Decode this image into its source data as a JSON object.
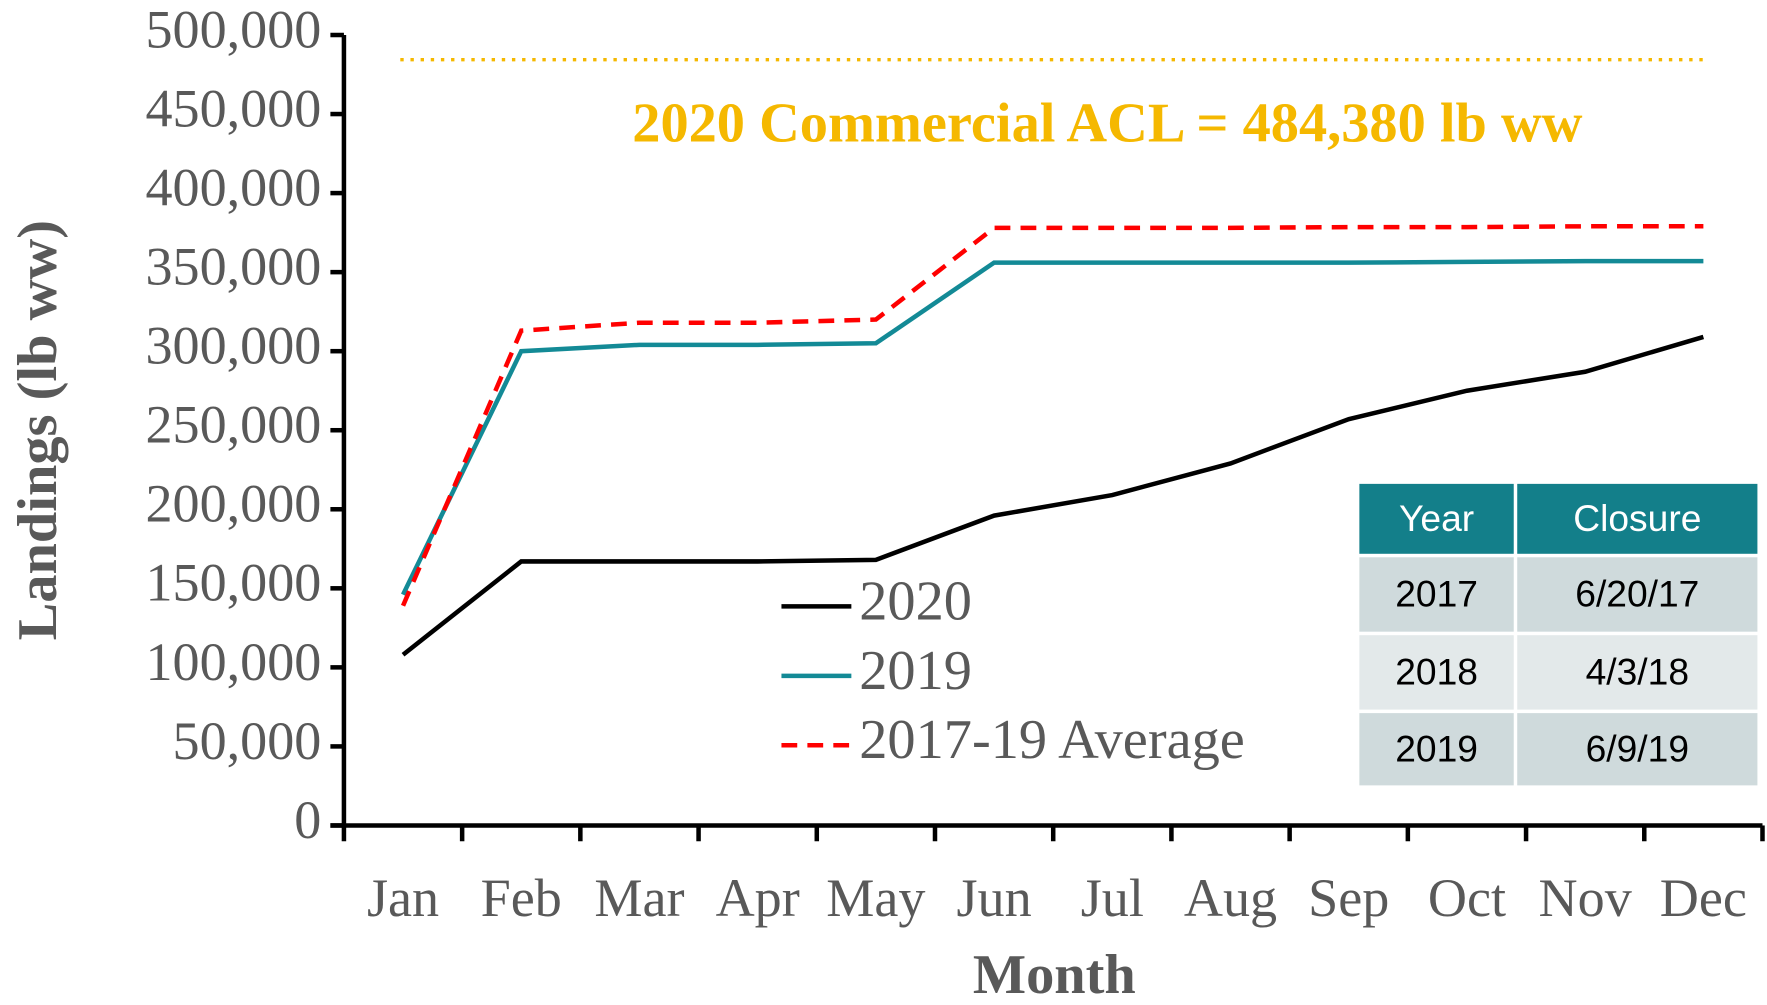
{
  "chart_data": {
    "type": "line",
    "xlabel": "Month",
    "ylabel": "Landings (lb ww)",
    "categories": [
      "Jan",
      "Feb",
      "Mar",
      "Apr",
      "May",
      "Jun",
      "Jul",
      "Aug",
      "Sep",
      "Oct",
      "Nov",
      "Dec"
    ],
    "series": [
      {
        "name": "2020",
        "color": "#000000",
        "dash": false,
        "values": [
          108000,
          167000,
          167000,
          167000,
          168000,
          196000,
          209000,
          229000,
          257000,
          275000,
          287000,
          309000
        ]
      },
      {
        "name": "2019",
        "color": "#138a96",
        "dash": false,
        "values": [
          146000,
          300000,
          304000,
          304000,
          305000,
          356000,
          356000,
          356000,
          356000,
          356500,
          357000,
          357000
        ]
      },
      {
        "name": "2017-19 Average",
        "color": "#ff0000",
        "dash": true,
        "values": [
          139000,
          313000,
          318000,
          318000,
          320000,
          378000,
          378000,
          378000,
          378500,
          378500,
          379000,
          379000
        ]
      }
    ],
    "ylim": [
      0,
      500000
    ],
    "yticks": [
      0,
      {
        "value": 50000,
        "label": "50,000"
      },
      {
        "value": 100000,
        "label": "100,000"
      },
      {
        "value": 150000,
        "label": "150,000"
      },
      {
        "value": 200000,
        "label": "200,000"
      },
      {
        "value": 250000,
        "label": "250,000"
      },
      {
        "value": 300000,
        "label": "300,000"
      },
      {
        "value": 350000,
        "label": "350,000"
      },
      {
        "value": 400000,
        "label": "400,000"
      },
      {
        "value": 450000,
        "label": "450,000"
      },
      {
        "value": 500000,
        "label": "500,000"
      }
    ],
    "reference_line": {
      "value": 484380,
      "color": "#f5b800",
      "annotation": "2020 Commercial ACL = 484,380 lb ww"
    },
    "table": {
      "header": [
        "Year",
        "Closure"
      ],
      "rows": [
        [
          "2017",
          "6/20/17"
        ],
        [
          "2018",
          "4/3/18"
        ],
        [
          "2019",
          "6/9/19"
        ]
      ]
    }
  }
}
